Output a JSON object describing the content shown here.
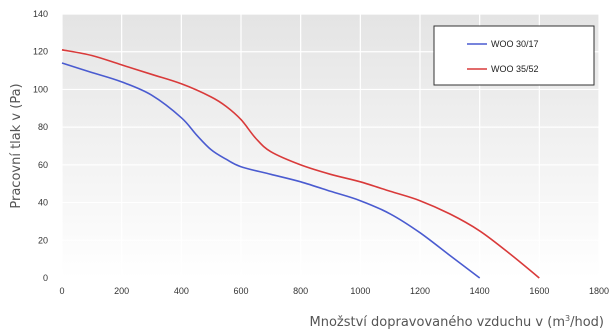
{
  "chart_data": {
    "type": "line",
    "title": "",
    "xlabel": "Množství dopravovaného vzduchu v (m³/hod)",
    "xlabel_prefix": "Množství dopravovaného vzduchu v (m",
    "xlabel_sup": "3",
    "xlabel_suffix": "/hod)",
    "ylabel": "Pracovní tlak v (Pa)",
    "xlim": [
      0,
      1800
    ],
    "ylim": [
      0,
      140
    ],
    "xticks": [
      0,
      200,
      400,
      600,
      800,
      1000,
      1200,
      1400,
      1600,
      1800
    ],
    "yticks": [
      0,
      20,
      40,
      60,
      80,
      100,
      120,
      140
    ],
    "grid": true,
    "legend_position": "top-right",
    "series": [
      {
        "name": "WOO 30/17",
        "color": "#4a5bd0",
        "x": [
          0,
          100,
          200,
          300,
          400,
          450,
          500,
          550,
          600,
          700,
          800,
          900,
          1000,
          1100,
          1200,
          1300,
          1400
        ],
        "y": [
          114,
          109,
          104,
          97,
          85,
          76,
          68,
          63,
          59,
          55,
          51,
          46,
          41,
          34,
          24,
          12,
          0
        ]
      },
      {
        "name": "WOO 35/52",
        "color": "#d93a3a",
        "x": [
          0,
          100,
          200,
          300,
          400,
          500,
          550,
          600,
          650,
          700,
          800,
          900,
          1000,
          1100,
          1200,
          1300,
          1400,
          1500,
          1600
        ],
        "y": [
          121,
          118,
          113,
          108,
          103,
          96,
          91,
          84,
          74,
          67,
          60,
          55,
          51,
          46,
          41,
          34,
          25,
          13,
          0
        ]
      }
    ]
  }
}
